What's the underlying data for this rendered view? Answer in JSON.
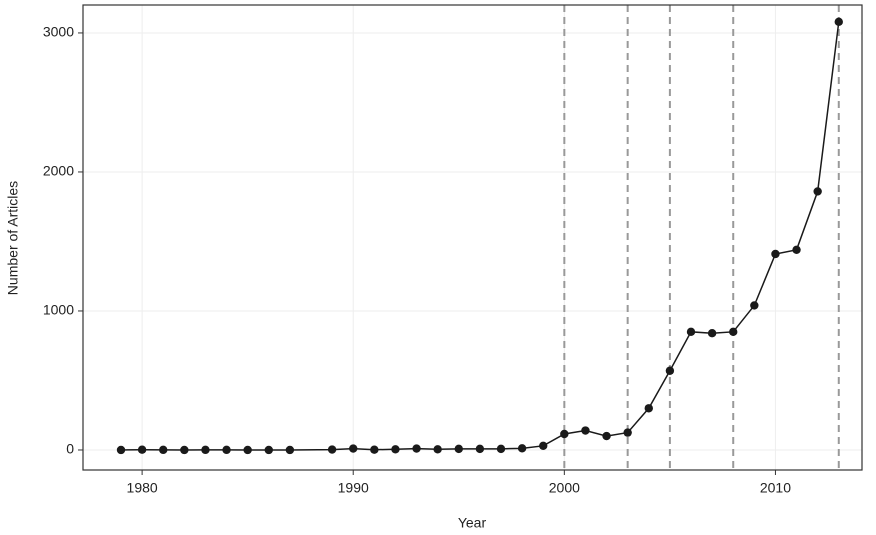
{
  "chart_data": {
    "type": "line",
    "x_label": "Year",
    "y_label": "Number of Articles",
    "x": [
      1979,
      1980,
      1981,
      1982,
      1983,
      1984,
      1985,
      1986,
      1987,
      1989,
      1990,
      1991,
      1992,
      1993,
      1994,
      1995,
      1996,
      1997,
      1998,
      1999,
      2000,
      2001,
      2002,
      2003,
      2004,
      2005,
      2006,
      2007,
      2008,
      2009,
      2010,
      2011,
      2012,
      2013
    ],
    "series": [
      {
        "color": "#1a1a1a",
        "values": [
          0,
          2,
          1,
          0,
          1,
          1,
          0,
          0,
          0,
          3,
          10,
          2,
          5,
          10,
          5,
          8,
          8,
          8,
          12,
          30,
          115,
          140,
          100,
          125,
          300,
          570,
          850,
          840,
          850,
          1040,
          1410,
          1440,
          1860,
          3080
        ]
      }
    ],
    "vlines": [
      2000,
      2003,
      2005,
      2008,
      2013
    ],
    "vline_color": "#999999",
    "xlim": [
      1977.2,
      2014.1
    ],
    "xticks": [
      1980,
      1990,
      2000,
      2010
    ],
    "ylim": [
      -144,
      3201
    ],
    "yticks": [
      0,
      1000,
      2000,
      3000
    ],
    "grid": true
  }
}
